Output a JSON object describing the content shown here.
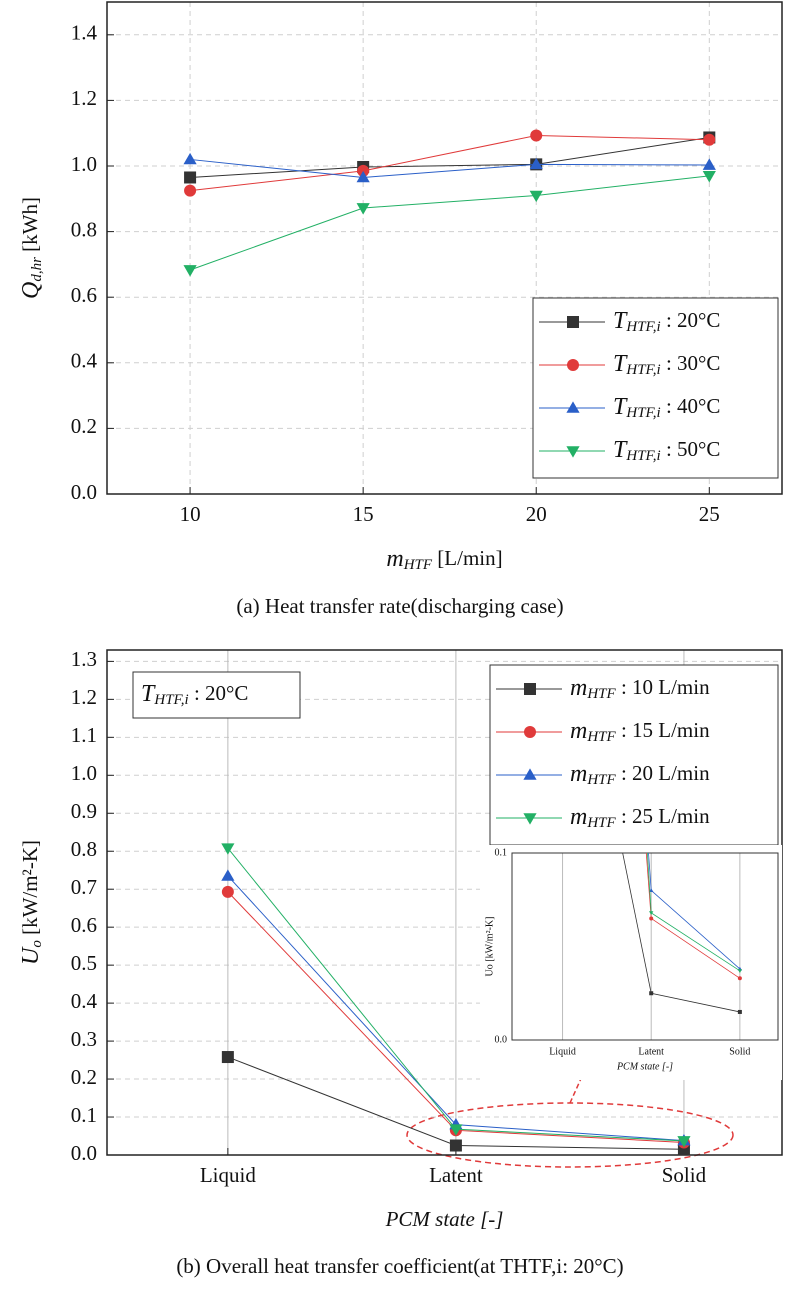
{
  "chart_data": [
    {
      "type": "line",
      "xlabel": "mHTF [L/min]",
      "ylabel": "Qd,hr [kWh]",
      "caption": "(a) Heat transfer rate(discharging case)",
      "x": [
        10,
        15,
        20,
        25
      ],
      "xlim": [
        7.6,
        27.1
      ],
      "xticks": [
        10,
        15,
        20,
        25
      ],
      "ylim": [
        0,
        1.5
      ],
      "yticks": [
        {
          "value": 0,
          "label": "0.0"
        },
        0.2,
        0.4,
        0.6,
        0.8,
        {
          "value": 1,
          "label": "1.0"
        },
        1.2,
        1.4
      ],
      "grid": true,
      "legend": "lower right",
      "series": [
        {
          "name": "THTF,i : 20°C",
          "color": "#333333",
          "marker": "square",
          "values": [
            0.965,
            0.997,
            1.005,
            1.087
          ]
        },
        {
          "name": "THTF,i : 30°C",
          "color": "#e03a3a",
          "marker": "circle",
          "values": [
            0.925,
            0.985,
            1.093,
            1.08
          ]
        },
        {
          "name": "THTF,i : 40°C",
          "color": "#2a5fc8",
          "marker": "triangle-up",
          "values": [
            1.02,
            0.965,
            1.005,
            1.003
          ]
        },
        {
          "name": "THTF,i : 50°C",
          "color": "#22b065",
          "marker": "triangle-down",
          "values": [
            0.683,
            0.872,
            0.91,
            0.97
          ]
        }
      ]
    },
    {
      "type": "line",
      "xlabel": "PCM state [-]",
      "ylabel": "Uo [kW/m²-K]",
      "caption": "(b) Overall heat transfer coefficient(at THTF,i: 20°C)",
      "annotation": "THTF,i : 20°C",
      "categories": [
        "Liquid",
        "Latent",
        "Solid"
      ],
      "ylim": [
        0,
        1.33
      ],
      "yticks": [
        {
          "value": 0,
          "label": "0.0"
        },
        0.1,
        0.2,
        0.3,
        0.4,
        0.5,
        0.6,
        0.7,
        0.8,
        0.9,
        {
          "value": 1,
          "label": "1.0"
        },
        1.1,
        1.2,
        1.3
      ],
      "grid": true,
      "legend": "upper right",
      "series": [
        {
          "name": "mHTF : 10 L/min",
          "color": "#333333",
          "marker": "square",
          "values": [
            0.258,
            0.025,
            0.015
          ]
        },
        {
          "name": "mHTF : 15 L/min",
          "color": "#e03a3a",
          "marker": "circle",
          "values": [
            0.693,
            0.065,
            0.033
          ]
        },
        {
          "name": "mHTF : 20 L/min",
          "color": "#2a5fc8",
          "marker": "triangle-up",
          "values": [
            0.735,
            0.08,
            0.038
          ]
        },
        {
          "name": "mHTF : 25 L/min",
          "color": "#22b065",
          "marker": "triangle-down",
          "values": [
            0.808,
            0.068,
            0.037
          ]
        }
      ],
      "inset": {
        "ylim": [
          0,
          0.1
        ],
        "yticks": [
          {
            "value": 0,
            "label": "0.0"
          },
          0.1
        ],
        "xlabel": "PCM state [-]",
        "ylabel": "Uo [kW/m²-K]"
      }
    }
  ]
}
